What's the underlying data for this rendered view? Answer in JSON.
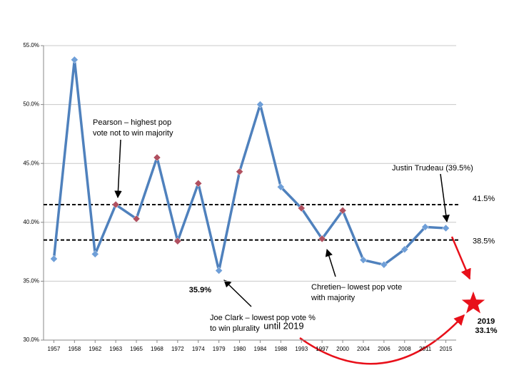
{
  "chart_data": {
    "type": "line",
    "categories": [
      "1957",
      "1958",
      "1962",
      "1963",
      "1965",
      "1968",
      "1972",
      "1974",
      "1979",
      "1980",
      "1984",
      "1988",
      "1993",
      "1997",
      "2000",
      "2004",
      "2006",
      "2008",
      "2011",
      "2015"
    ],
    "values": [
      36.9,
      53.8,
      37.3,
      41.5,
      40.3,
      45.5,
      38.4,
      43.3,
      35.9,
      44.3,
      50.0,
      43.0,
      41.2,
      38.6,
      41.0,
      36.8,
      36.4,
      37.7,
      39.6,
      39.5
    ],
    "color": "#4f81bd",
    "point_colors": [
      "#6f9fd8",
      "#6f9fd8",
      "#6f9fd8",
      "#b05060",
      "#b05060",
      "#b05060",
      "#b05060",
      "#b05060",
      "#6f9fd8",
      "#b05060",
      "#6f9fd8",
      "#6f9fd8",
      "#b05060",
      "#b05060",
      "#b05060",
      "#6f9fd8",
      "#6f9fd8",
      "#6f9fd8",
      "#6f9fd8",
      "#6f9fd8"
    ],
    "ylim": [
      30,
      55
    ],
    "yticks": [
      {
        "value": 30,
        "label": "30.0%"
      },
      {
        "value": 35,
        "label": "35.0%"
      },
      {
        "value": 40,
        "label": "40.0%"
      },
      {
        "value": 45,
        "label": "45.0%"
      },
      {
        "value": 50,
        "label": "50.0%"
      },
      {
        "value": 55,
        "label": "55.0%"
      }
    ],
    "grid": true,
    "reference_lines": [
      {
        "value": 41.5,
        "label": "41.5%"
      },
      {
        "value": 38.5,
        "label": "38.5%"
      }
    ],
    "projection": {
      "label": "2019",
      "value": 33.1,
      "value_label": "33.1%",
      "color": "#e8101a"
    },
    "annotations": [
      {
        "lines": [
          "Pearson – highest pop",
          "vote not to win majority"
        ]
      },
      {
        "lines": [
          "Justin Trudeau (39.5%)"
        ]
      },
      {
        "lines": [
          "Chretien– lowest pop vote",
          "with majority"
        ]
      },
      {
        "lines": [
          "35.9%"
        ]
      },
      {
        "lines": [
          "Joe Clark – lowest pop vote %",
          "to win plurality"
        ],
        "highlight": "until 2019"
      }
    ]
  }
}
